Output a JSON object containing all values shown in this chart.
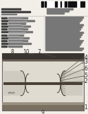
{
  "bg_color": "#f2efe9",
  "barcode_color": "#111111",
  "label_color": "#333333",
  "diagram_bg": "#e0dbd0",
  "diagram_border": "#666666",
  "layer_dark": "#3a3530",
  "layer_mid": "#7a7060",
  "layer_light": "#c8c2b4",
  "active_stripe": "#4a4035",
  "curve_color": "#444035",
  "leader_color": "#555550",
  "text_dark": "#444444",
  "text_med": "#777777",
  "text_light": "#aaaaaa",
  "fig_width": 1.28,
  "fig_height": 1.65,
  "dpi": 100
}
